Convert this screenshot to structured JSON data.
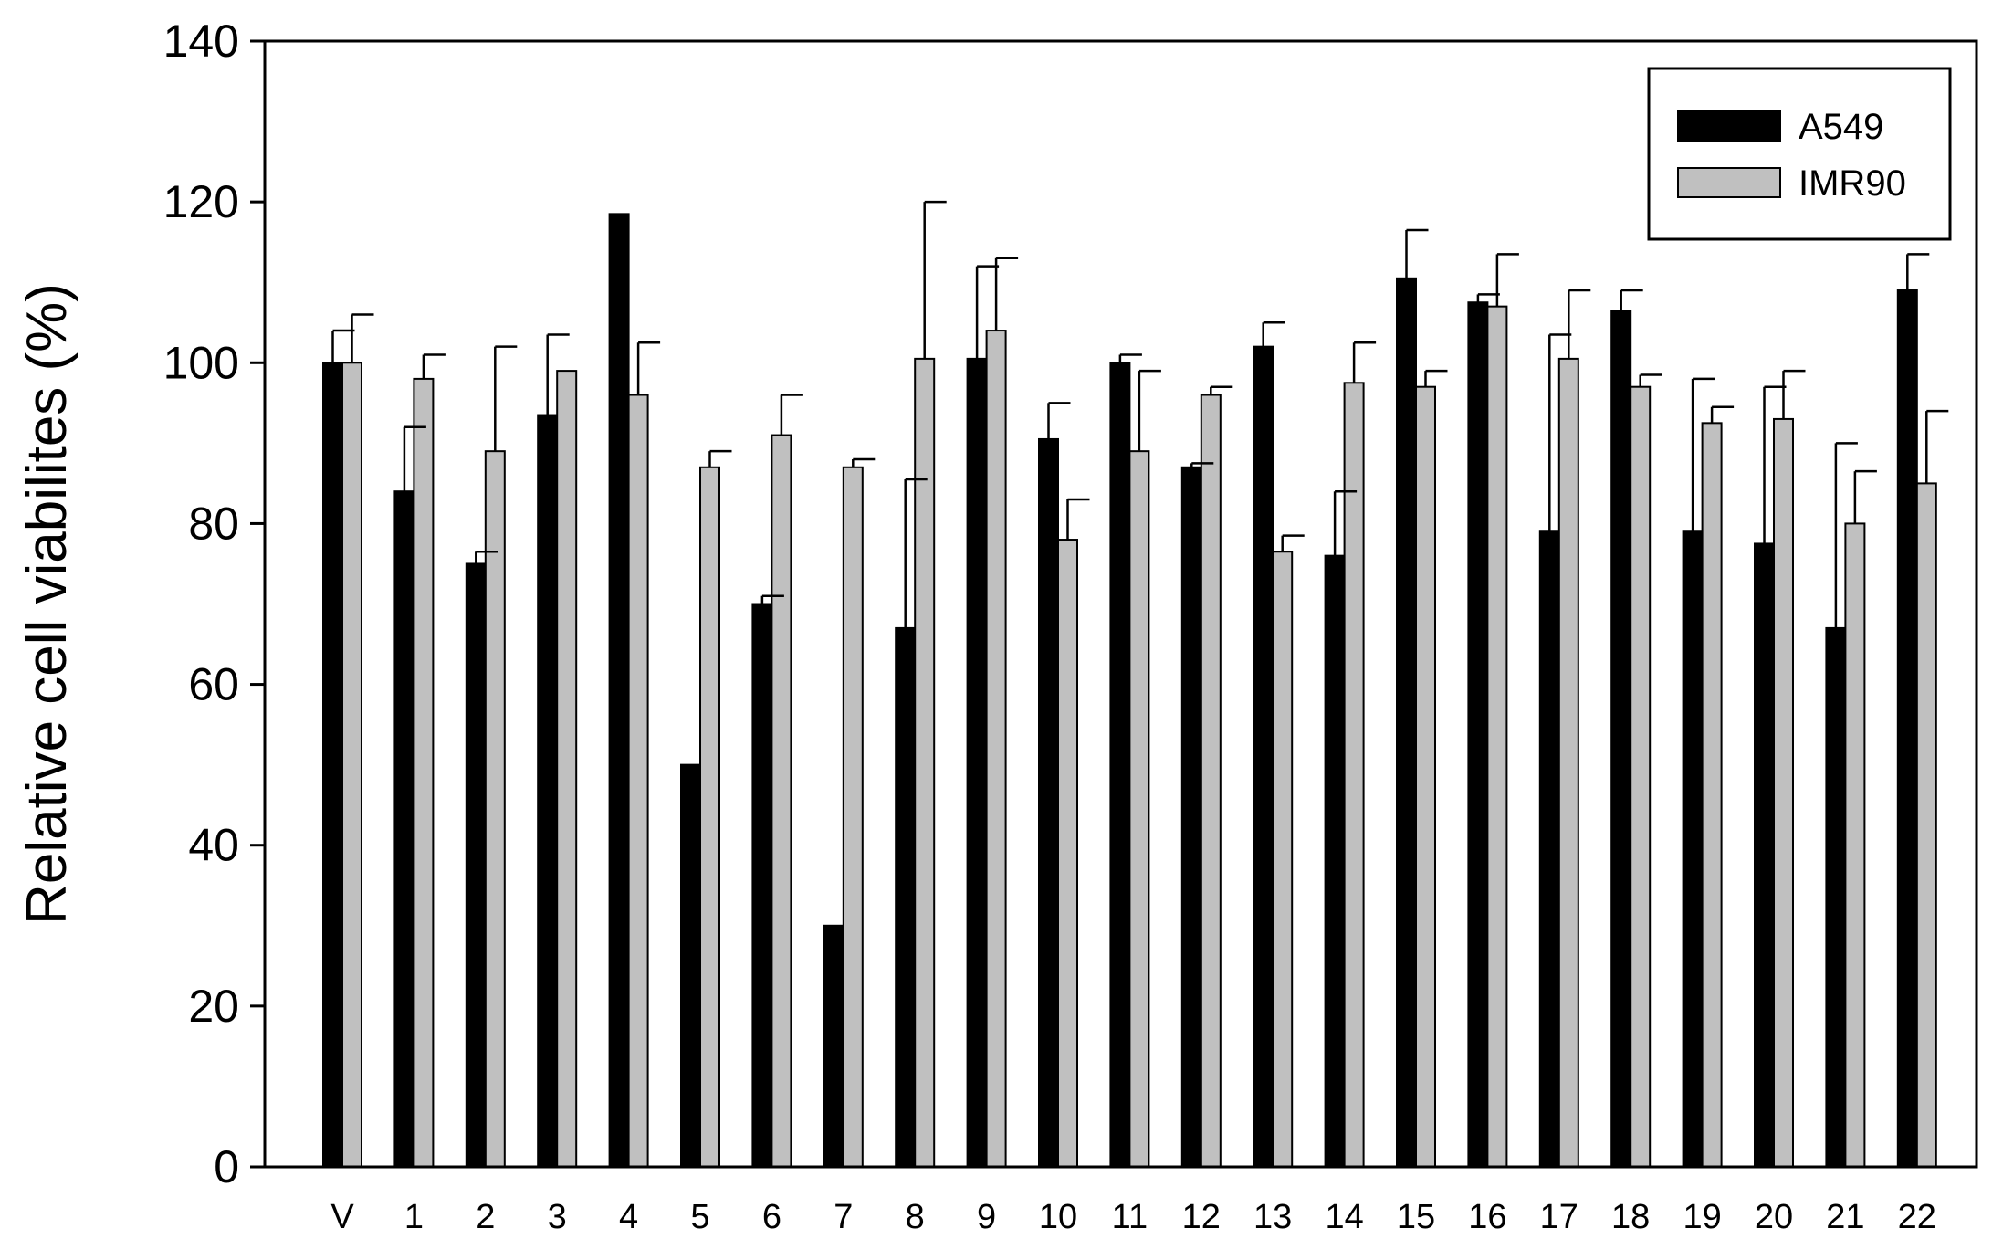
{
  "chart_data": {
    "type": "bar",
    "title": "",
    "xlabel": "",
    "ylabel": "Relative cell viabilites (%)",
    "ylim": [
      0,
      140
    ],
    "yticks": [
      "0",
      "20",
      "40",
      "60",
      "80",
      "100",
      "120",
      "140"
    ],
    "grid": false,
    "legend_position": "top-right",
    "categories": [
      "V",
      "1",
      "2",
      "3",
      "4",
      "5",
      "6",
      "7",
      "8",
      "9",
      "10",
      "11",
      "12",
      "13",
      "14",
      "15",
      "16",
      "17",
      "18",
      "19",
      "20",
      "21",
      "22"
    ],
    "series": [
      {
        "name": "A549",
        "color": "#000000",
        "values": [
          100,
          84,
          75,
          93.5,
          118.5,
          50,
          70,
          30,
          67,
          100.5,
          90.5,
          100,
          87,
          102,
          76,
          110.5,
          107.5,
          79,
          106.5,
          79,
          77.5,
          67,
          109
        ],
        "errors": [
          4,
          8,
          1.5,
          10,
          0,
          0,
          1,
          0,
          18.5,
          11.5,
          4.5,
          1,
          0.5,
          3,
          8,
          6,
          1,
          24.5,
          2.5,
          19,
          19.5,
          23,
          4.5
        ]
      },
      {
        "name": "IMR90",
        "color": "#c0c0c0",
        "values": [
          100,
          98,
          89,
          99,
          96,
          87,
          91,
          87,
          100.5,
          104,
          78,
          89,
          96,
          76.5,
          97.5,
          97,
          107,
          100.5,
          97,
          92.5,
          93,
          80,
          85
        ],
        "errors": [
          6,
          3,
          13,
          0,
          6.5,
          2,
          5,
          1,
          19.5,
          9,
          5,
          10,
          1,
          2,
          5,
          2,
          6.5,
          8.5,
          1.5,
          2,
          6,
          6.5,
          9
        ]
      }
    ]
  }
}
